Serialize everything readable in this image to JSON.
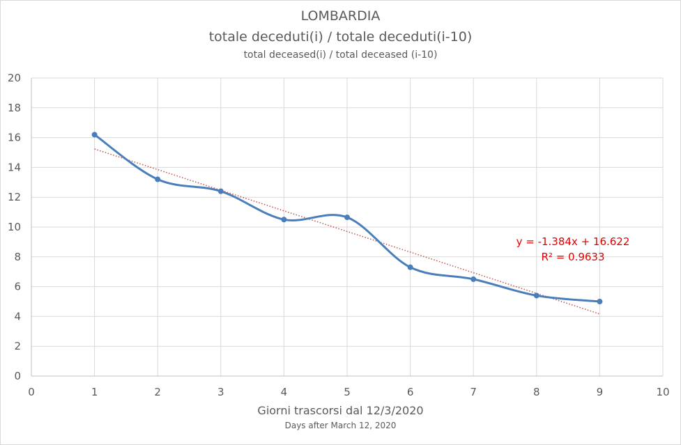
{
  "chart_data": {
    "type": "scatter",
    "title": "LOMBARDIA",
    "subtitle": "totale deceduti(i) / totale deceduti(i-10)",
    "subtitle_en": "total deceased(i) / total deceased (i-10)",
    "xlabel": "Giorni trascorsi dal 12/3/2020",
    "xlabel_en": "Days after March 12, 2020",
    "ylabel": "",
    "xlim": [
      0,
      10
    ],
    "ylim": [
      0,
      20
    ],
    "x_ticks": [
      0,
      1,
      2,
      3,
      4,
      5,
      6,
      7,
      8,
      9,
      10
    ],
    "y_ticks": [
      0,
      2,
      4,
      6,
      8,
      10,
      12,
      14,
      16,
      18,
      20
    ],
    "grid": true,
    "legend": "none",
    "series": [
      {
        "x": [
          1,
          2,
          3,
          4,
          5,
          6,
          7,
          8,
          9
        ],
        "y": [
          16.2,
          13.2,
          12.4,
          10.5,
          10.65,
          7.3,
          6.5,
          5.4,
          5.0
        ],
        "style": "smoothed line with markers",
        "color": "#4a7ebb"
      }
    ],
    "trendline": {
      "type": "linear",
      "slope": -1.384,
      "intercept": 16.622,
      "x_range": [
        1,
        9
      ],
      "color": "#c0504d",
      "style": "dotted",
      "equation_label": "y = -1.384x + 16.622",
      "r2_label": "R² = 0.9633"
    }
  }
}
